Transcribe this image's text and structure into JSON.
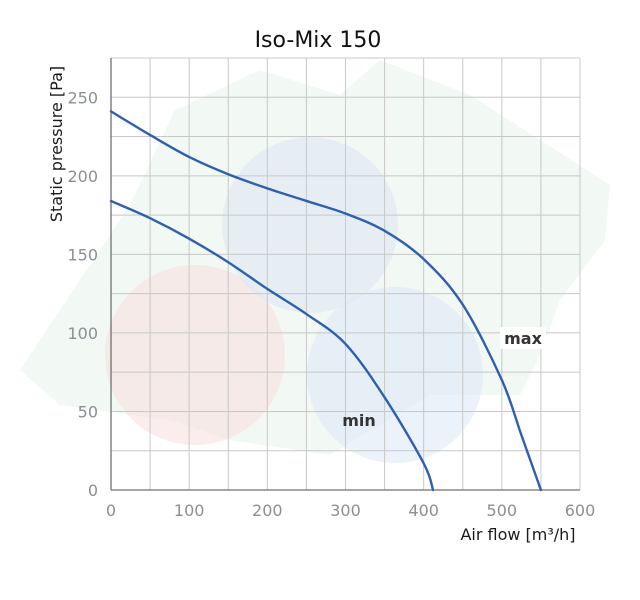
{
  "chart_data": {
    "type": "line",
    "title": "Iso-Mix 150",
    "xlabel": "Air flow [m³/h]",
    "ylabel": "Static pressure [Pa]",
    "xlim": [
      0,
      600
    ],
    "ylim": [
      0,
      275
    ],
    "x_ticks": [
      "0",
      "100",
      "200",
      "300",
      "400",
      "500",
      "600"
    ],
    "y_ticks": [
      "0",
      "50",
      "100",
      "150",
      "200",
      "250"
    ],
    "grid": true,
    "series_color": "#2f5fae",
    "series": [
      {
        "name": "max",
        "x": [
          0,
          50,
          100,
          150,
          200,
          250,
          300,
          350,
          400,
          450,
          500,
          525,
          550
        ],
        "y": [
          241,
          226,
          212,
          201,
          192,
          184,
          176,
          165,
          147,
          118,
          70,
          35,
          0
        ]
      },
      {
        "name": "min",
        "x": [
          0,
          50,
          100,
          150,
          200,
          250,
          300,
          350,
          400,
          412
        ],
        "y": [
          184,
          173,
          160,
          145,
          128,
          112,
          93,
          59,
          17,
          0
        ]
      }
    ]
  }
}
